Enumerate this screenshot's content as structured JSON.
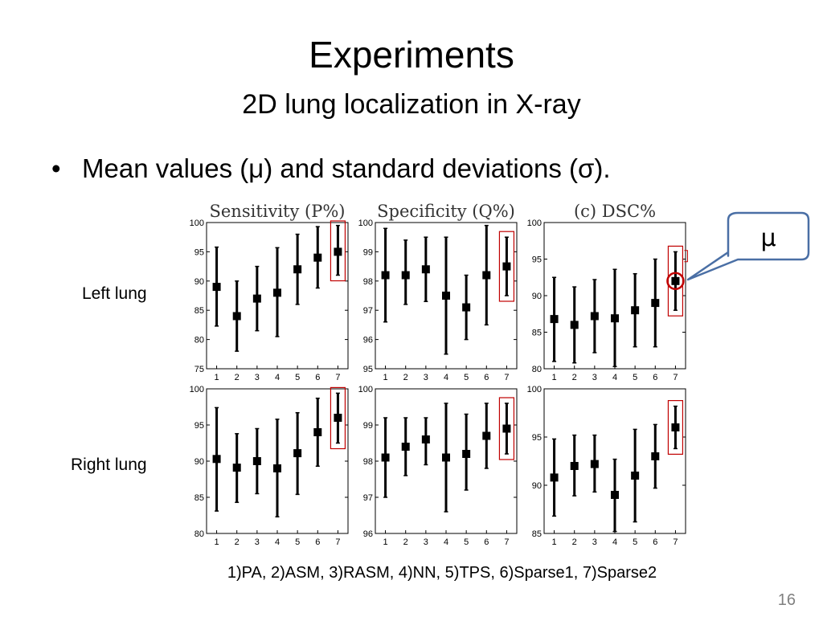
{
  "slide": {
    "title": "Experiments",
    "subtitle": "2D lung localization in X-ray",
    "bullet": "Mean values (μ) and standard deviations (σ).",
    "row_labels": [
      "Left lung",
      "Right lung"
    ],
    "legend": "1)PA, 2)ASM, 3)RASM, 4)NN, 5)TPS, 6)Sparse1, 7)Sparse2",
    "page_number": "16",
    "callout": "μ"
  },
  "colors": {
    "highlight": "#c00000",
    "marker": "#000000",
    "callout_border": "#4a6fa5"
  },
  "chart_data": [
    {
      "type": "scatter",
      "title": "Sensitivity (P%)",
      "row": "Left lung",
      "categories": [
        "1",
        "2",
        "3",
        "4",
        "5",
        "6",
        "7"
      ],
      "ylim": [
        75,
        100
      ],
      "yticks": [
        75,
        80,
        85,
        90,
        95,
        100
      ],
      "mean": [
        89,
        84,
        87,
        88,
        92,
        94,
        95
      ],
      "err": [
        [
          82.3,
          95.8
        ],
        [
          78,
          90
        ],
        [
          81.5,
          92.5
        ],
        [
          80.5,
          95.7
        ],
        [
          86,
          98
        ],
        [
          88.8,
          99.3
        ],
        [
          91,
          99.5
        ]
      ],
      "highlight": 6
    },
    {
      "type": "scatter",
      "title": "Specificity (Q%)",
      "row": "Left lung",
      "categories": [
        "1",
        "2",
        "3",
        "4",
        "5",
        "6",
        "7"
      ],
      "ylim": [
        95,
        100
      ],
      "yticks": [
        95,
        96,
        97,
        98,
        99,
        100
      ],
      "mean": [
        98.2,
        98.2,
        98.4,
        97.5,
        97.1,
        98.2,
        98.5
      ],
      "err": [
        [
          96.6,
          99.8
        ],
        [
          97.2,
          99.4
        ],
        [
          97.3,
          99.5
        ],
        [
          95.5,
          99.5
        ],
        [
          96,
          98.2
        ],
        [
          96.5,
          99.9
        ],
        [
          97.5,
          99.5
        ]
      ],
      "highlight": 6
    },
    {
      "type": "scatter",
      "title": "(c) DSC%",
      "row": "Left lung",
      "categories": [
        "1",
        "2",
        "3",
        "4",
        "5",
        "6",
        "7"
      ],
      "ylim": [
        80,
        100
      ],
      "yticks": [
        80,
        85,
        90,
        95,
        100
      ],
      "mean": [
        86.8,
        86,
        87.2,
        86.9,
        88,
        89,
        92
      ],
      "err": [
        [
          81,
          92.5
        ],
        [
          80.8,
          91.2
        ],
        [
          82.2,
          92.2
        ],
        [
          80.3,
          93.6
        ],
        [
          83,
          93
        ],
        [
          83,
          95
        ],
        [
          88,
          96
        ]
      ],
      "highlight": 6,
      "circle": 6
    },
    {
      "type": "scatter",
      "title": "",
      "row": "Right lung",
      "categories": [
        "1",
        "2",
        "3",
        "4",
        "5",
        "6",
        "7"
      ],
      "ylim": [
        80,
        100
      ],
      "yticks": [
        80,
        85,
        90,
        95,
        100
      ],
      "mean": [
        90.3,
        89.1,
        90,
        89,
        91.1,
        94,
        96
      ],
      "err": [
        [
          83.1,
          97.4
        ],
        [
          84.3,
          93.8
        ],
        [
          85.5,
          94.5
        ],
        [
          82.3,
          95.8
        ],
        [
          85.4,
          96.7
        ],
        [
          89.3,
          98.7
        ],
        [
          92.5,
          99.4
        ]
      ],
      "highlight": 6
    },
    {
      "type": "scatter",
      "title": "",
      "row": "Right lung",
      "categories": [
        "1",
        "2",
        "3",
        "4",
        "5",
        "6",
        "7"
      ],
      "ylim": [
        96,
        100
      ],
      "yticks": [
        96,
        97,
        98,
        99,
        100
      ],
      "mean": [
        98.1,
        98.4,
        98.6,
        98.1,
        98.2,
        98.7,
        98.9
      ],
      "err": [
        [
          97,
          99.2
        ],
        [
          97.6,
          99.2
        ],
        [
          97.9,
          99.2
        ],
        [
          96.6,
          99.6
        ],
        [
          97.2,
          99.3
        ],
        [
          97.8,
          99.6
        ],
        [
          98.2,
          99.6
        ]
      ],
      "highlight": 6
    },
    {
      "type": "scatter",
      "title": "",
      "row": "Right lung",
      "categories": [
        "1",
        "2",
        "3",
        "4",
        "5",
        "6",
        "7"
      ],
      "ylim": [
        85,
        100
      ],
      "yticks": [
        85,
        90,
        95,
        100
      ],
      "mean": [
        90.8,
        92,
        92.2,
        89,
        91,
        93,
        96
      ],
      "err": [
        [
          86.8,
          94.8
        ],
        [
          88.9,
          95.2
        ],
        [
          89.3,
          95.2
        ],
        [
          85.2,
          92.7
        ],
        [
          86.2,
          95.8
        ],
        [
          89.7,
          96.3
        ],
        [
          93.8,
          98.2
        ]
      ],
      "highlight": 6
    }
  ]
}
